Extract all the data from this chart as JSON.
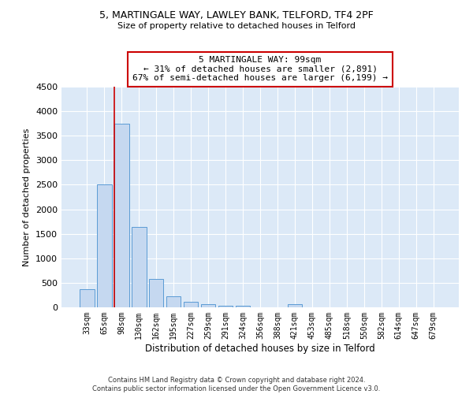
{
  "title1": "5, MARTINGALE WAY, LAWLEY BANK, TELFORD, TF4 2PF",
  "title2": "Size of property relative to detached houses in Telford",
  "xlabel": "Distribution of detached houses by size in Telford",
  "ylabel": "Number of detached properties",
  "bar_color": "#c5d8f0",
  "bar_edge_color": "#5b9bd5",
  "annotation_line_color": "#cc0000",
  "background_color": "#ffffff",
  "plot_bg_color": "#dce9f7",
  "grid_color": "#ffffff",
  "categories": [
    "33sqm",
    "65sqm",
    "98sqm",
    "130sqm",
    "162sqm",
    "195sqm",
    "227sqm",
    "259sqm",
    "291sqm",
    "324sqm",
    "356sqm",
    "388sqm",
    "421sqm",
    "453sqm",
    "485sqm",
    "518sqm",
    "550sqm",
    "582sqm",
    "614sqm",
    "647sqm",
    "679sqm"
  ],
  "values": [
    370,
    2500,
    3750,
    1640,
    585,
    230,
    110,
    65,
    40,
    25,
    0,
    0,
    65,
    0,
    0,
    0,
    0,
    0,
    0,
    0,
    0
  ],
  "property_bin_index": 2,
  "annotation_text_line1": "5 MARTINGALE WAY: 99sqm",
  "annotation_text_line2": "← 31% of detached houses are smaller (2,891)",
  "annotation_text_line3": "67% of semi-detached houses are larger (6,199) →",
  "ylim": [
    0,
    4500
  ],
  "yticks": [
    0,
    500,
    1000,
    1500,
    2000,
    2500,
    3000,
    3500,
    4000,
    4500
  ],
  "footer_line1": "Contains HM Land Registry data © Crown copyright and database right 2024.",
  "footer_line2": "Contains public sector information licensed under the Open Government Licence v3.0."
}
